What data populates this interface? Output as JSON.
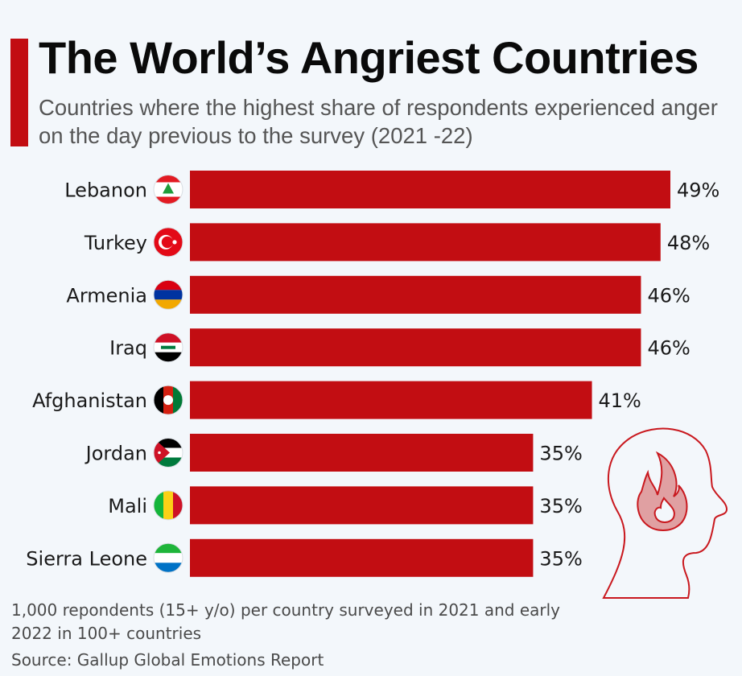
{
  "header": {
    "title": "The World’s Angriest Countries",
    "subtitle": "Countries where the highest share of respondents experienced anger on the day previous to the survey (2021 -22)"
  },
  "footer": {
    "note": "1,000 repondents (15+ y/o) per country surveyed in 2021 and early 2022 in 100+ countries",
    "source": "Source: Gallup Global Emotions Report"
  },
  "colors": {
    "bar": "#c20d12",
    "accent": "#c20d12",
    "background": "#f3f7fb",
    "icon_stroke": "#c9181e",
    "icon_fill": "#e0a0a2"
  },
  "chart_data": {
    "type": "bar",
    "orientation": "horizontal",
    "title": "The World’s Angriest Countries",
    "subtitle": "Countries where the highest share of respondents experienced anger on the day previous to the survey (2021 -22)",
    "xlabel": "",
    "ylabel": "",
    "unit": "%",
    "xlim": [
      0,
      49
    ],
    "grid": false,
    "legend": "none",
    "categories": [
      "Lebanon",
      "Turkey",
      "Armenia",
      "Iraq",
      "Afghanistan",
      "Jordan",
      "Mali",
      "Sierra Leone"
    ],
    "flags": [
      "lebanon-flag",
      "turkey-flag",
      "armenia-flag",
      "iraq-flag",
      "afghanistan-flag",
      "jordan-flag",
      "mali-flag",
      "sierra-leone-flag"
    ],
    "values": [
      49,
      48,
      46,
      46,
      41,
      35,
      35,
      35
    ],
    "data_labels": [
      "49%",
      "48%",
      "46%",
      "46%",
      "41%",
      "35%",
      "35%",
      "35%"
    ]
  },
  "decoration": {
    "icon": "angry-head-flame-icon"
  }
}
